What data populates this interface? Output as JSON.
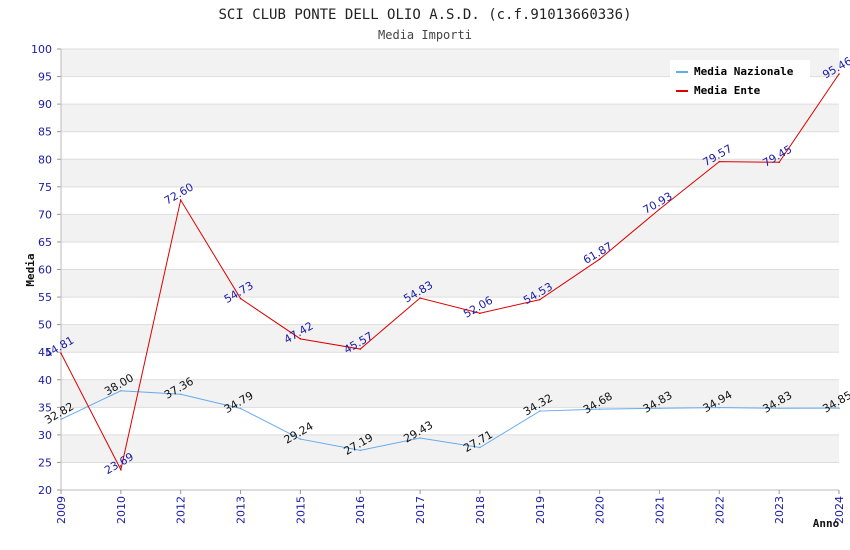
{
  "chart_data": {
    "type": "line",
    "title": "SCI CLUB PONTE DELL OLIO A.S.D. (c.f.91013660336)",
    "subtitle": "Media Importi",
    "xlabel": "Anno",
    "ylabel": "Media",
    "ylim": [
      20,
      100
    ],
    "ytick_step": 5,
    "grid": true,
    "legend_position": "top-right",
    "x": [
      "2009",
      "2010",
      "2012",
      "2013",
      "2015",
      "2016",
      "2017",
      "2018",
      "2019",
      "2020",
      "2021",
      "2022",
      "2023",
      "2024"
    ],
    "series": [
      {
        "name": "Media Nazionale",
        "color": "#66aaee",
        "label_color": "#111111",
        "values": [
          32.82,
          38.0,
          37.36,
          34.79,
          29.24,
          27.19,
          29.43,
          27.71,
          34.32,
          34.68,
          34.83,
          34.94,
          34.83,
          34.85
        ],
        "labels": [
          "32.82",
          "38.00",
          "37.36",
          "34.79",
          "29.24",
          "27.19",
          "29.43",
          "27.71",
          "34.32",
          "34.68",
          "34.83",
          "34.94",
          "34.83",
          "34.85"
        ]
      },
      {
        "name": "Media Ente",
        "color": "#dd0000",
        "label_color": "#1a1aa6",
        "values": [
          44.81,
          23.69,
          72.6,
          54.73,
          47.42,
          45.57,
          54.83,
          52.06,
          54.53,
          61.87,
          70.93,
          79.57,
          79.45,
          95.46
        ],
        "labels": [
          "44.81",
          "23.69",
          "72.60",
          "54.73",
          "47.42",
          "45.57",
          "54.83",
          "52.06",
          "54.53",
          "61.87",
          "70.93",
          "79.57",
          "79.45",
          "95.46"
        ]
      }
    ]
  }
}
